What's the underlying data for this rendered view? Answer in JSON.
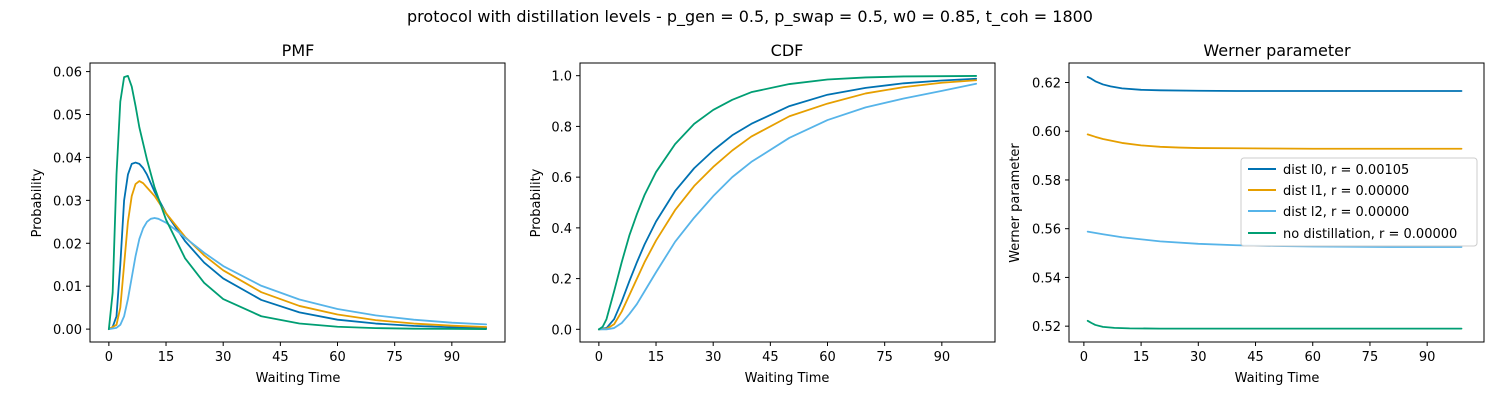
{
  "figure": {
    "suptitle": "protocol with distillation levels - p_gen = 0.5, p_swap = 0.5, w0 = 0.85, t_coh = 1800"
  },
  "legend": {
    "placement": "center-right of third panel",
    "entries": [
      {
        "label": "dist l0, r = 0.00105",
        "color": "#0072B2"
      },
      {
        "label": "dist l1, r = 0.00000",
        "color": "#E69F00"
      },
      {
        "label": "dist l2, r = 0.00000",
        "color": "#56B4E9"
      },
      {
        "label": "no distillation, r = 0.00000",
        "color": "#009E73"
      }
    ]
  },
  "chart_data": [
    {
      "type": "line",
      "title": "PMF",
      "xlabel": "Waiting Time",
      "ylabel": "Probability",
      "xlim": [
        -4.95,
        103.95
      ],
      "ylim": [
        -0.003,
        0.062
      ],
      "xticks": [
        0,
        15,
        30,
        45,
        60,
        75,
        90
      ],
      "yticks": [
        0.0,
        0.01,
        0.02,
        0.03,
        0.04,
        0.05,
        0.06
      ],
      "ytick_labels": [
        "0.00",
        "0.01",
        "0.02",
        "0.03",
        "0.04",
        "0.05",
        "0.06"
      ],
      "series": [
        {
          "name": "dist l0, r = 0.00105",
          "color": "#0072B2",
          "x": [
            0,
            1,
            2,
            3,
            4,
            5,
            6,
            7,
            8,
            9,
            10,
            12,
            15,
            20,
            25,
            30,
            40,
            50,
            60,
            70,
            80,
            90,
            99
          ],
          "y": [
            0.0,
            0.0005,
            0.003,
            0.015,
            0.03,
            0.036,
            0.0385,
            0.0388,
            0.0385,
            0.0375,
            0.036,
            0.032,
            0.027,
            0.0205,
            0.0155,
            0.0118,
            0.0068,
            0.0039,
            0.0022,
            0.0013,
            0.00075,
            0.00043,
            0.00026
          ]
        },
        {
          "name": "dist l1, r = 0.00000",
          "color": "#E69F00",
          "x": [
            0,
            2,
            3,
            4,
            5,
            6,
            7,
            8,
            9,
            10,
            12,
            15,
            20,
            25,
            30,
            40,
            50,
            60,
            70,
            80,
            90,
            99
          ],
          "y": [
            0.0,
            0.001,
            0.005,
            0.015,
            0.025,
            0.031,
            0.0338,
            0.0345,
            0.034,
            0.033,
            0.031,
            0.027,
            0.0215,
            0.0172,
            0.0137,
            0.0086,
            0.0054,
            0.0034,
            0.0021,
            0.0013,
            0.0008,
            0.0005
          ]
        },
        {
          "name": "dist l2, r = 0.00000",
          "color": "#56B4E9",
          "x": [
            0,
            2,
            3,
            4,
            5,
            6,
            7,
            8,
            9,
            10,
            11,
            12,
            13,
            15,
            18,
            20,
            25,
            30,
            40,
            50,
            60,
            70,
            80,
            90,
            99
          ],
          "y": [
            0.0,
            0.0003,
            0.001,
            0.003,
            0.007,
            0.012,
            0.017,
            0.021,
            0.0235,
            0.025,
            0.0257,
            0.0259,
            0.0257,
            0.0248,
            0.0228,
            0.0213,
            0.0178,
            0.0147,
            0.0101,
            0.0069,
            0.0047,
            0.0032,
            0.0022,
            0.0015,
            0.0011
          ]
        },
        {
          "name": "no distillation, r = 0.00000",
          "color": "#009E73",
          "x": [
            0,
            1,
            2,
            3,
            4,
            5,
            6,
            7,
            8,
            10,
            12,
            15,
            20,
            25,
            30,
            40,
            50,
            60,
            70,
            80,
            90,
            99
          ],
          "y": [
            0.0,
            0.0085,
            0.036,
            0.053,
            0.0587,
            0.059,
            0.0565,
            0.052,
            0.047,
            0.0395,
            0.033,
            0.0255,
            0.0165,
            0.0108,
            0.007,
            0.003,
            0.0013,
            0.00055,
            0.00024,
            0.0001,
            5e-05,
            2e-05
          ]
        }
      ]
    },
    {
      "type": "line",
      "title": "CDF",
      "xlabel": "Waiting Time",
      "ylabel": "Probability",
      "xlim": [
        -4.95,
        103.95
      ],
      "ylim": [
        -0.05,
        1.05
      ],
      "xticks": [
        0,
        15,
        30,
        45,
        60,
        75,
        90
      ],
      "yticks": [
        0.0,
        0.2,
        0.4,
        0.6,
        0.8,
        1.0
      ],
      "ytick_labels": [
        "0.0",
        "0.2",
        "0.4",
        "0.6",
        "0.8",
        "1.0"
      ],
      "series": [
        {
          "name": "dist l0, r = 0.00105",
          "color": "#0072B2",
          "x": [
            0,
            2,
            4,
            6,
            8,
            10,
            12,
            15,
            20,
            25,
            30,
            35,
            40,
            50,
            60,
            70,
            80,
            90,
            99
          ],
          "y": [
            0.0,
            0.005,
            0.04,
            0.11,
            0.19,
            0.265,
            0.335,
            0.425,
            0.545,
            0.635,
            0.705,
            0.765,
            0.81,
            0.88,
            0.925,
            0.952,
            0.97,
            0.981,
            0.988
          ]
        },
        {
          "name": "dist l1, r = 0.00000",
          "color": "#E69F00",
          "x": [
            0,
            2,
            4,
            6,
            8,
            10,
            12,
            15,
            20,
            25,
            30,
            35,
            40,
            50,
            60,
            70,
            80,
            90,
            99
          ],
          "y": [
            0.0,
            0.002,
            0.02,
            0.07,
            0.135,
            0.2,
            0.265,
            0.35,
            0.47,
            0.565,
            0.64,
            0.705,
            0.76,
            0.84,
            0.89,
            0.93,
            0.955,
            0.972,
            0.982
          ]
        },
        {
          "name": "dist l2, r = 0.00000",
          "color": "#56B4E9",
          "x": [
            0,
            2,
            4,
            6,
            8,
            10,
            12,
            15,
            20,
            25,
            30,
            35,
            40,
            50,
            60,
            70,
            80,
            90,
            99
          ],
          "y": [
            0.0,
            0.0,
            0.005,
            0.025,
            0.06,
            0.1,
            0.15,
            0.225,
            0.345,
            0.44,
            0.525,
            0.6,
            0.66,
            0.755,
            0.825,
            0.875,
            0.91,
            0.94,
            0.968
          ]
        },
        {
          "name": "no distillation, r = 0.00000",
          "color": "#009E73",
          "x": [
            0,
            1,
            2,
            4,
            6,
            8,
            10,
            12,
            15,
            20,
            25,
            30,
            35,
            40,
            50,
            60,
            70,
            80,
            90,
            99
          ],
          "y": [
            0.0,
            0.01,
            0.04,
            0.15,
            0.265,
            0.37,
            0.455,
            0.53,
            0.62,
            0.73,
            0.81,
            0.865,
            0.905,
            0.935,
            0.967,
            0.985,
            0.993,
            0.997,
            0.998,
            0.999
          ]
        }
      ]
    },
    {
      "type": "line",
      "title": "Werner parameter",
      "xlabel": "Waiting Time",
      "ylabel": "Werner parameter",
      "xlim": [
        -3.9,
        104.9
      ],
      "ylim": [
        0.5135,
        0.628
      ],
      "xticks": [
        0,
        15,
        30,
        45,
        60,
        75,
        90
      ],
      "yticks": [
        0.52,
        0.54,
        0.56,
        0.58,
        0.6,
        0.62
      ],
      "ytick_labels": [
        "0.52",
        "0.54",
        "0.56",
        "0.58",
        "0.60",
        "0.62"
      ],
      "series": [
        {
          "name": "dist l0, r = 0.00105",
          "color": "#0072B2",
          "x": [
            1,
            2,
            3,
            5,
            7,
            10,
            15,
            20,
            30,
            40,
            50,
            60,
            70,
            80,
            90,
            99
          ],
          "y": [
            0.6223,
            0.6215,
            0.6205,
            0.6192,
            0.6184,
            0.6176,
            0.617,
            0.6168,
            0.6166,
            0.6165,
            0.6165,
            0.6165,
            0.6165,
            0.6165,
            0.6165,
            0.6165
          ]
        },
        {
          "name": "dist l1, r = 0.00000",
          "color": "#E69F00",
          "x": [
            1,
            3,
            5,
            10,
            15,
            20,
            25,
            30,
            40,
            50,
            60,
            70,
            80,
            90,
            99
          ],
          "y": [
            0.5987,
            0.5977,
            0.5968,
            0.5952,
            0.5942,
            0.5936,
            0.5933,
            0.5931,
            0.593,
            0.5929,
            0.5928,
            0.5928,
            0.5928,
            0.5928,
            0.5928
          ]
        },
        {
          "name": "dist l2, r = 0.00000",
          "color": "#56B4E9",
          "x": [
            1,
            5,
            10,
            20,
            30,
            40,
            50,
            60,
            70,
            80,
            90,
            99
          ],
          "y": [
            0.5588,
            0.5577,
            0.5565,
            0.5548,
            0.5538,
            0.5532,
            0.5529,
            0.5527,
            0.5526,
            0.5525,
            0.5525,
            0.5525
          ]
        },
        {
          "name": "no distillation, r = 0.00000",
          "color": "#009E73",
          "x": [
            1,
            2,
            3,
            5,
            8,
            12,
            20,
            30,
            40,
            50,
            60,
            70,
            80,
            90,
            99
          ],
          "y": [
            0.5222,
            0.5213,
            0.5205,
            0.5197,
            0.5193,
            0.5191,
            0.519,
            0.519,
            0.519,
            0.519,
            0.519,
            0.519,
            0.519,
            0.519,
            0.519
          ]
        }
      ]
    }
  ]
}
